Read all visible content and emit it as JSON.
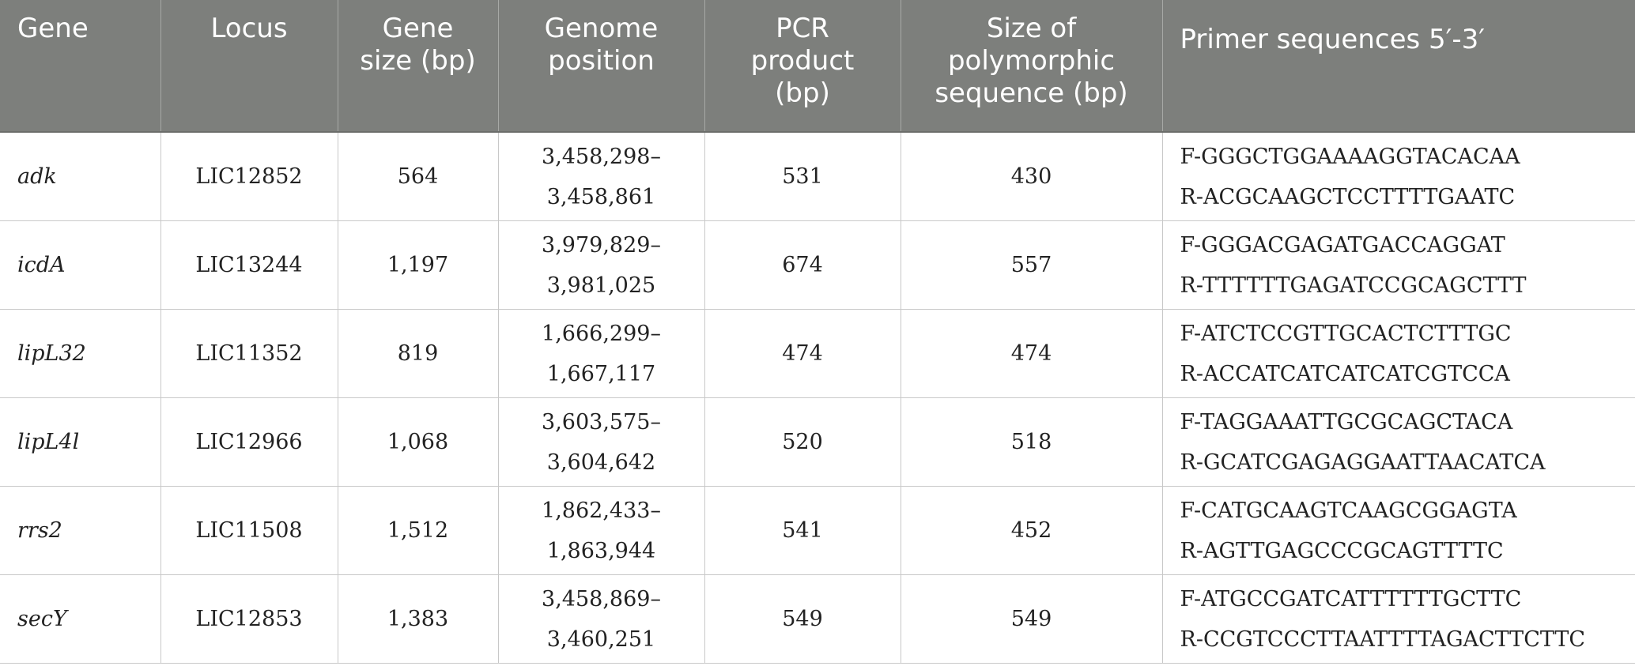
{
  "headers": {
    "gene": "Gene",
    "locus": "Locus",
    "gene_size": [
      "Gene",
      "size (bp)"
    ],
    "genome_position": [
      "Genome",
      "position"
    ],
    "pcr_product": [
      "PCR",
      "product",
      "(bp)"
    ],
    "polymorphic": [
      "Size of",
      "polymorphic",
      "sequence (bp)"
    ],
    "primers": "Primer sequences 5′-3′"
  },
  "rows": [
    {
      "gene": "adk",
      "locus": "LIC12852",
      "size": "564",
      "pos": [
        "3,458,298–",
        "3,458,861"
      ],
      "pcr": "531",
      "poly": "430",
      "primers": [
        "F-GGGCTGGAAAAGGTACACAA",
        "R-ACGCAAGCTCCTTTTGAATC"
      ]
    },
    {
      "gene": "icdA",
      "locus": "LIC13244",
      "size": "1,197",
      "pos": [
        "3,979,829–",
        "3,981,025"
      ],
      "pcr": "674",
      "poly": "557",
      "primers": [
        "F-GGGACGAGATGACCAGGAT",
        "R-TTTTTTGAGATCCGCAGCTTT"
      ]
    },
    {
      "gene": "lipL32",
      "locus": "LIC11352",
      "size": "819",
      "pos": [
        "1,666,299–",
        "1,667,117"
      ],
      "pcr": "474",
      "poly": "474",
      "primers": [
        "F-ATCTCCGTTGCACTCTTTGC",
        "R-ACCATCATCATCATCGTCCA"
      ]
    },
    {
      "gene": "lipL4l",
      "locus": "LIC12966",
      "size": "1,068",
      "pos": [
        "3,603,575–",
        "3,604,642"
      ],
      "pcr": "520",
      "poly": "518",
      "primers": [
        "F-TAGGAAATTGCGCAGCTACA",
        "R-GCATCGAGAGGAATTAACATCA"
      ]
    },
    {
      "gene": "rrs2",
      "locus": "LIC11508",
      "size": "1,512",
      "pos": [
        "1,862,433–",
        "1,863,944"
      ],
      "pcr": "541",
      "poly": "452",
      "primers": [
        "F-CATGCAAGTCAAGCGGAGTA",
        "R-AGTTGAGCCCGCAGTTTTC"
      ]
    },
    {
      "gene": "secY",
      "locus": "LIC12853",
      "size": "1,383",
      "pos": [
        "3,458,869–",
        "3,460,251"
      ],
      "pcr": "549",
      "poly": "549",
      "primers": [
        "F-ATGCCGATCATTTTTTGCTTC",
        "R-CCGTCCCTTAATTTTAGACTTCTTC"
      ]
    }
  ],
  "colors": {
    "header_bg": "#7d7f7c",
    "header_text": "#ffffff",
    "grid": "#c8c8c8"
  }
}
